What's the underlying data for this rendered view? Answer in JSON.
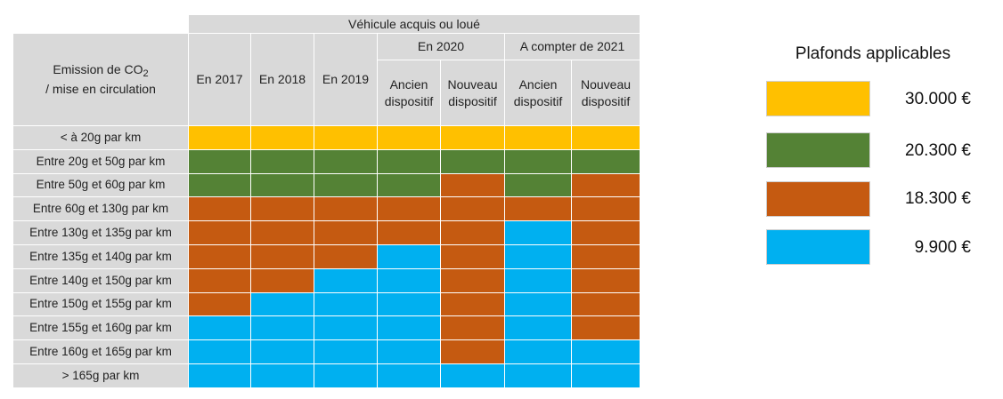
{
  "header": {
    "top_title": "Véhicule acquis ou loué",
    "row_header_line1_pre": "Emission de CO",
    "row_header_line1_sub": "2",
    "row_header_line2": "/ mise en circulation",
    "year_2017": "En 2017",
    "year_2018": "En 2018",
    "year_2019": "En 2019",
    "group_2020": "En 2020",
    "group_2021": "A compter de 2021",
    "sub_ancien_1": "Ancien",
    "sub_ancien_2": "dispositif",
    "sub_nouveau_1": "Nouveau",
    "sub_nouveau_2": "dispositif"
  },
  "legend": {
    "title": "Plafonds applicables",
    "items": [
      {
        "label": "30.000 €",
        "color": "#ffc000"
      },
      {
        "label": "20.300 €",
        "color": "#548235"
      },
      {
        "label": "18.300 €",
        "color": "#c55a11"
      },
      {
        "label": "9.900 €",
        "color": "#00b0f0"
      }
    ]
  },
  "chart_data": {
    "type": "table",
    "title": "Plafonds applicables",
    "columns": [
      "En 2017",
      "En 2018",
      "En 2019",
      "En 2020 - Ancien dispositif",
      "En 2020 - Nouveau dispositif",
      "A compter de 2021 - Ancien dispositif",
      "A compter de 2021 - Nouveau dispositif"
    ],
    "rows": [
      {
        "label": "<  à 20g par km",
        "values": [
          30000,
          30000,
          30000,
          30000,
          30000,
          30000,
          30000
        ]
      },
      {
        "label": "Entre 20g et 50g par km",
        "values": [
          20300,
          20300,
          20300,
          20300,
          20300,
          20300,
          20300
        ]
      },
      {
        "label": "Entre 50g et 60g par km",
        "values": [
          20300,
          20300,
          20300,
          20300,
          18300,
          20300,
          18300
        ]
      },
      {
        "label": "Entre 60g et 130g par km",
        "values": [
          18300,
          18300,
          18300,
          18300,
          18300,
          18300,
          18300
        ]
      },
      {
        "label": "Entre 130g et 135g par km",
        "values": [
          18300,
          18300,
          18300,
          18300,
          18300,
          9900,
          18300
        ]
      },
      {
        "label": "Entre 135g et 140g par km",
        "values": [
          18300,
          18300,
          18300,
          9900,
          18300,
          9900,
          18300
        ]
      },
      {
        "label": "Entre 140g et 150g par km",
        "values": [
          18300,
          18300,
          9900,
          9900,
          18300,
          9900,
          18300
        ]
      },
      {
        "label": "Entre 150g et 155g par km",
        "values": [
          18300,
          9900,
          9900,
          9900,
          18300,
          9900,
          18300
        ]
      },
      {
        "label": "Entre 155g et 160g par km",
        "values": [
          9900,
          9900,
          9900,
          9900,
          18300,
          9900,
          18300
        ]
      },
      {
        "label": "Entre 160g et 165g par km",
        "values": [
          9900,
          9900,
          9900,
          9900,
          18300,
          9900,
          9900
        ]
      },
      {
        "label": "> 165g par km",
        "values": [
          9900,
          9900,
          9900,
          9900,
          9900,
          9900,
          9900
        ]
      }
    ],
    "color_map": {
      "30000": "#ffc000",
      "20300": "#548235",
      "18300": "#c55a11",
      "9900": "#00b0f0"
    }
  }
}
